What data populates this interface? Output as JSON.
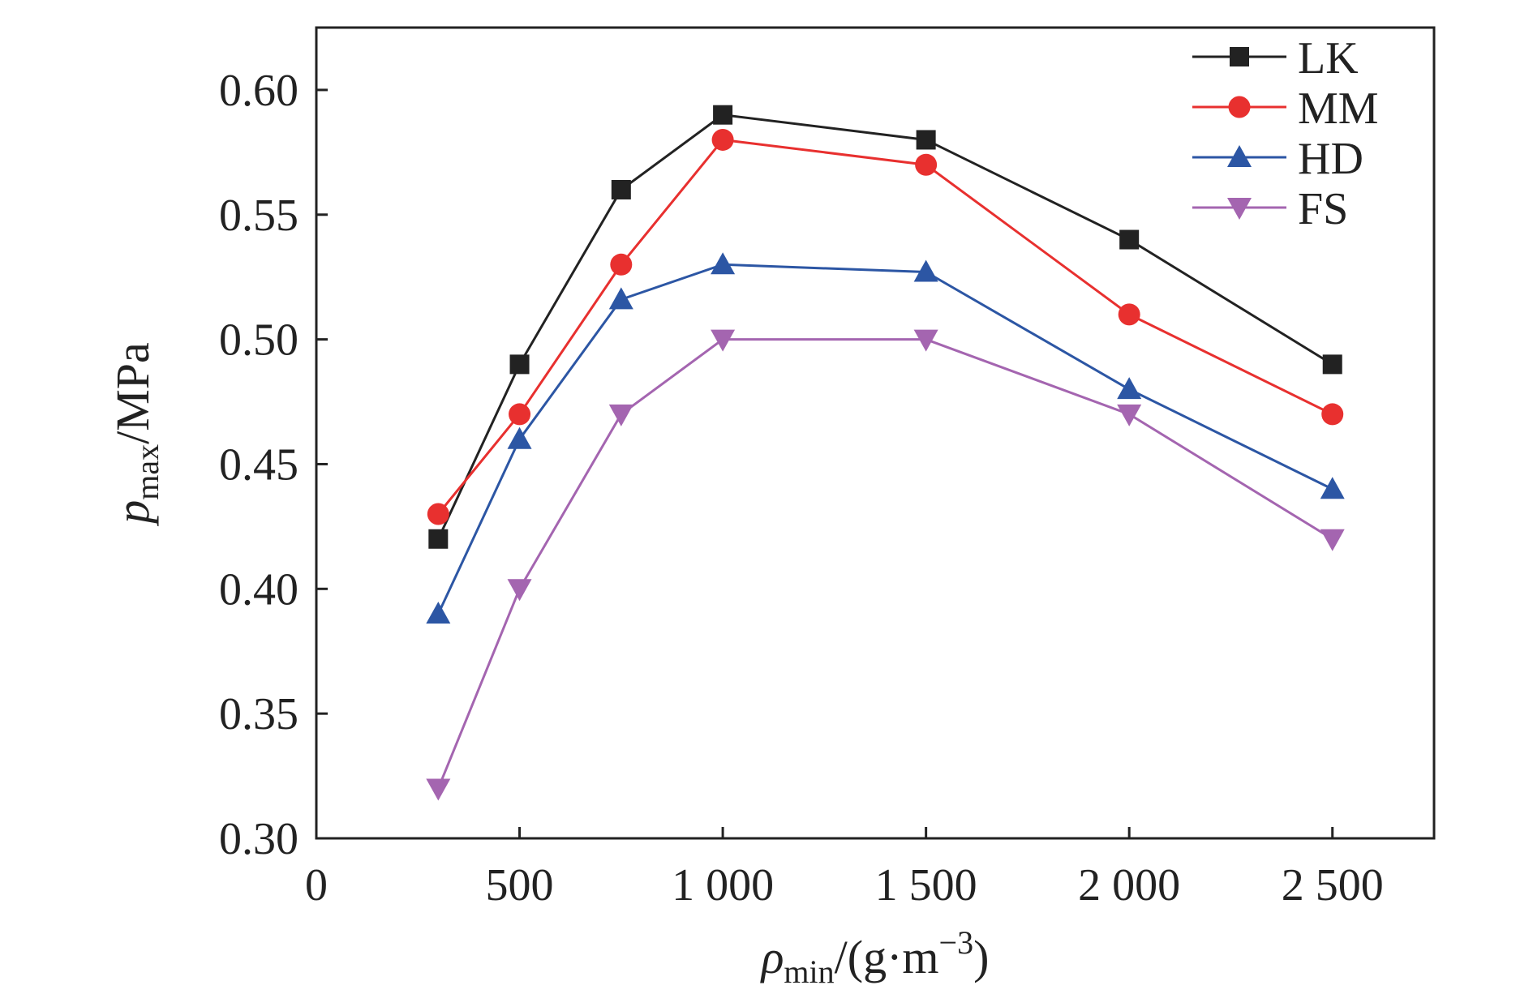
{
  "chart_data": {
    "type": "line",
    "title": "",
    "xlabel": {
      "main": "ρ",
      "sub": "min",
      "unit_open": "/(g·m",
      "sup": "−3",
      "unit_close": ")"
    },
    "ylabel": {
      "main": "p",
      "sub": "max",
      "unit": "/MPa"
    },
    "xlim": [
      0,
      2750
    ],
    "ylim": [
      0.3,
      0.625
    ],
    "x_ticks": [
      0,
      500,
      1000,
      1500,
      2000,
      2500
    ],
    "x_tick_labels": [
      "0",
      "500",
      "1 000",
      "1 500",
      "2 000",
      "2 500"
    ],
    "y_ticks": [
      0.3,
      0.35,
      0.4,
      0.45,
      0.5,
      0.55,
      0.6
    ],
    "y_tick_labels": [
      "0.30",
      "0.35",
      "0.40",
      "0.45",
      "0.50",
      "0.55",
      "0.60"
    ],
    "grid": false,
    "legend_position": "top-right",
    "x": [
      300,
      500,
      750,
      1000,
      1500,
      2000,
      2500
    ],
    "series": [
      {
        "name": "LK",
        "color": "#222222",
        "marker": "square",
        "values": [
          0.42,
          0.49,
          0.56,
          0.59,
          0.58,
          0.54,
          0.49
        ]
      },
      {
        "name": "MM",
        "color": "#e8302f",
        "marker": "circle",
        "values": [
          0.43,
          0.47,
          0.53,
          0.58,
          0.57,
          0.51,
          0.47
        ]
      },
      {
        "name": "HD",
        "color": "#2c56a4",
        "marker": "triangle-up",
        "values": [
          0.39,
          0.46,
          0.516,
          0.53,
          0.527,
          0.48,
          0.44
        ]
      },
      {
        "name": "FS",
        "color": "#a465b0",
        "marker": "triangle-down",
        "values": [
          0.32,
          0.4,
          0.47,
          0.5,
          0.5,
          0.47,
          0.42
        ]
      }
    ]
  }
}
